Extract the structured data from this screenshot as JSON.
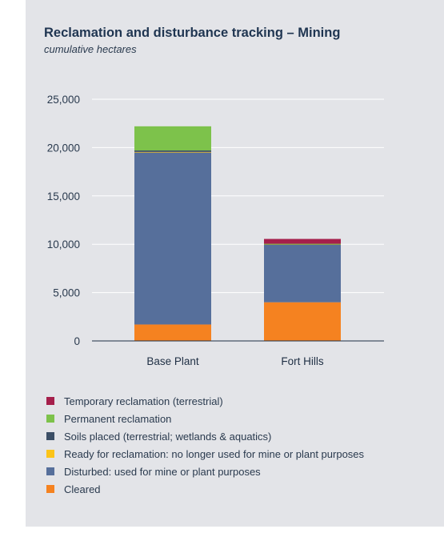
{
  "chart_data": {
    "type": "bar",
    "stacked": true,
    "title": "Reclamation and disturbance tracking – Mining",
    "subtitle": "cumulative hectares",
    "categories": [
      "Base Plant",
      "Fort Hills"
    ],
    "ylim": [
      0,
      25000
    ],
    "yticks": [
      0,
      5000,
      10000,
      15000,
      20000,
      25000
    ],
    "ytick_labels": [
      "0",
      "5,000",
      "10,000",
      "15,000",
      "20,000",
      "25,000"
    ],
    "grid": true,
    "legend_position": "bottom",
    "series": [
      {
        "name": "Cleared",
        "color": "#f58220",
        "values": [
          1700,
          4000
        ]
      },
      {
        "name": "Disturbed: used for mine or plant purposes",
        "color": "#566f9b",
        "values": [
          17800,
          6000
        ]
      },
      {
        "name": "Ready for reclamation: no longer used for mine or plant purposes",
        "color": "#fcc419",
        "values": [
          50,
          10
        ]
      },
      {
        "name": "Soils placed (terrestrial; wetlands & aquatics)",
        "color": "#3b4e66",
        "values": [
          150,
          20
        ]
      },
      {
        "name": "Permanent reclamation",
        "color": "#7dc24b",
        "values": [
          2500,
          20
        ]
      },
      {
        "name": "Temporary reclamation (terrestrial)",
        "color": "#a51f4b",
        "values": [
          0,
          500
        ]
      }
    ],
    "legend_order": [
      5,
      4,
      3,
      2,
      1,
      0
    ]
  }
}
